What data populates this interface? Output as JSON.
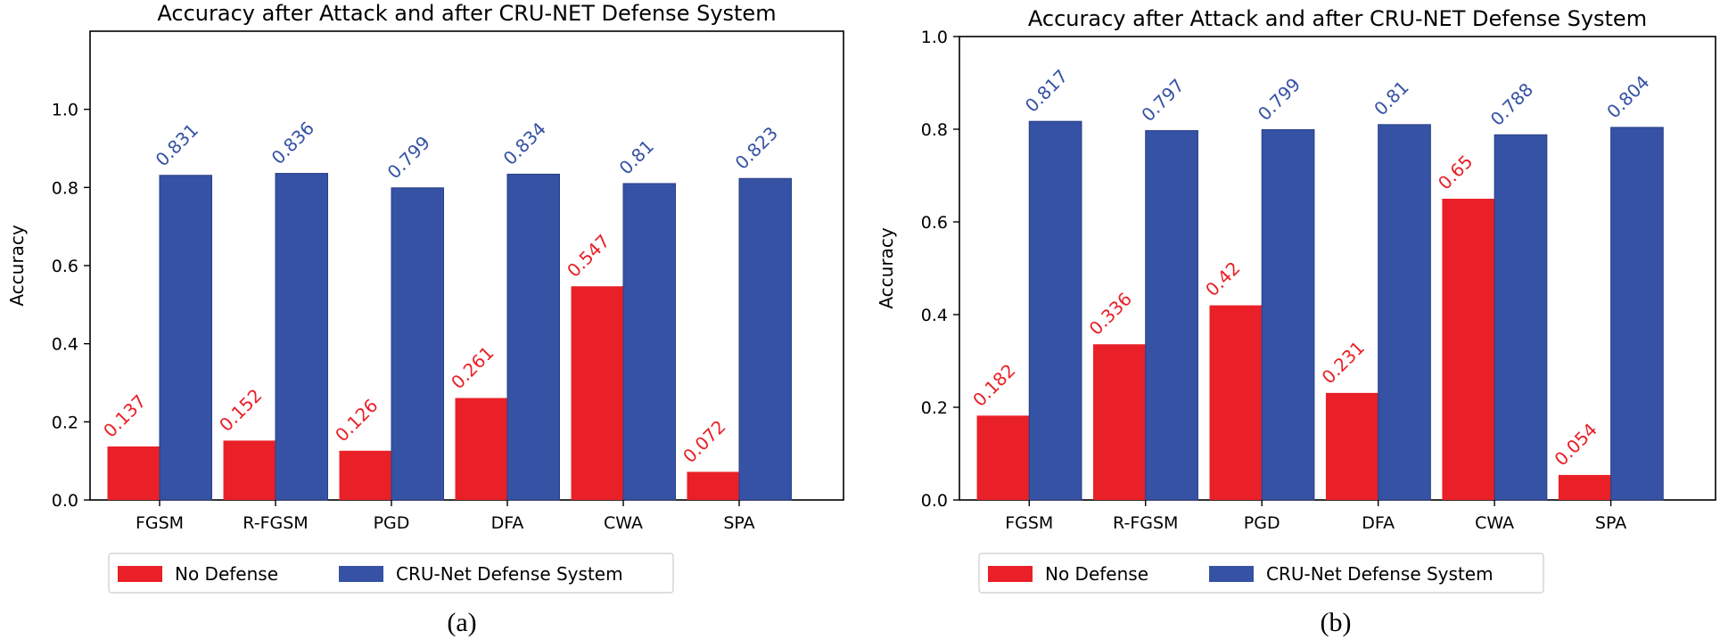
{
  "chart_data": [
    {
      "type": "bar",
      "panel": "(a)",
      "title": "Accuracy after Attack and after CRU-NET Defense System",
      "xlabel": "",
      "ylabel": "Accuracy",
      "ylim": [
        0,
        1.2
      ],
      "yticks": [
        0.0,
        0.2,
        0.4,
        0.6,
        0.8,
        1.0
      ],
      "ytick_labels": [
        "0.0",
        "0.2",
        "0.4",
        "0.6",
        "0.8",
        "1.0"
      ],
      "categories": [
        "FGSM",
        "R-FGSM",
        "PGD",
        "DFA",
        "CWA",
        "SPA"
      ],
      "series": [
        {
          "name": "No Defense",
          "color": "#e92027",
          "values": [
            0.137,
            0.152,
            0.126,
            0.261,
            0.547,
            0.072
          ],
          "labels": [
            "0.137",
            "0.152",
            "0.126",
            "0.261",
            "0.547",
            "0.072"
          ]
        },
        {
          "name": "CRU-Net Defense System",
          "color": "#3652a4",
          "values": [
            0.831,
            0.836,
            0.799,
            0.834,
            0.81,
            0.823
          ],
          "labels": [
            "0.831",
            "0.836",
            "0.799",
            "0.834",
            "0.81",
            "0.823"
          ]
        }
      ],
      "legend": "bottom",
      "grid": false
    },
    {
      "type": "bar",
      "panel": "(b)",
      "title": "Accuracy after Attack and after CRU-NET Defense System",
      "xlabel": "",
      "ylabel": "Accuracy",
      "ylim": [
        0,
        1.0
      ],
      "yticks": [
        0.0,
        0.2,
        0.4,
        0.6,
        0.8,
        1.0
      ],
      "ytick_labels": [
        "0.0",
        "0.2",
        "0.4",
        "0.6",
        "0.8",
        "1.0"
      ],
      "categories": [
        "FGSM",
        "R-FGSM",
        "PGD",
        "DFA",
        "CWA",
        "SPA"
      ],
      "series": [
        {
          "name": "No Defense",
          "color": "#e92027",
          "values": [
            0.182,
            0.336,
            0.42,
            0.231,
            0.65,
            0.054
          ],
          "labels": [
            "0.182",
            "0.336",
            "0.42",
            "0.231",
            "0.65",
            "0.054"
          ]
        },
        {
          "name": "CRU-Net Defense System",
          "color": "#3652a4",
          "values": [
            0.817,
            0.797,
            0.799,
            0.81,
            0.788,
            0.804
          ],
          "labels": [
            "0.817",
            "0.797",
            "0.799",
            "0.81",
            "0.788",
            "0.804"
          ]
        }
      ],
      "legend": "bottom",
      "grid": false
    }
  ]
}
